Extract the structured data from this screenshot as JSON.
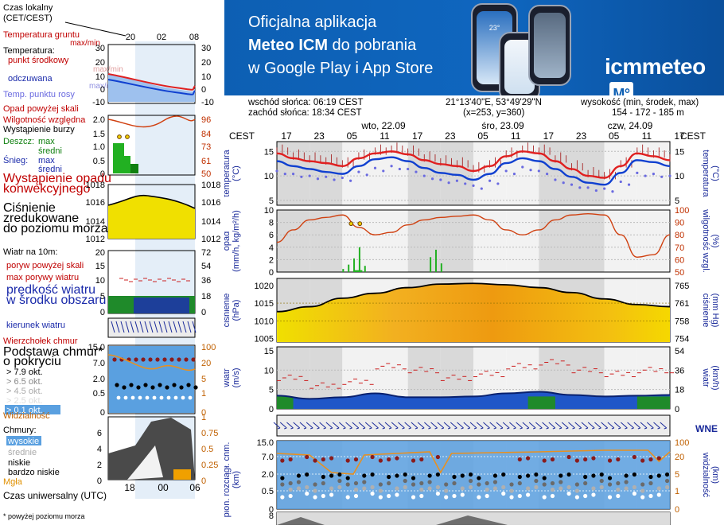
{
  "banner": {
    "line1": "Oficjalna aplikacja",
    "line2_bold": "Meteo ICM",
    "line2_rest": " do pobrania",
    "line3": "w Google Play i App Store",
    "logo_text": "icmmeteo",
    "logo_badge": "M°",
    "phone_temp": "23°"
  },
  "header": {
    "sunrise": "wschód słońca: 06:19 CEST",
    "sunset": "zachód słońca: 18:34 CEST",
    "coords": "21°13'40\"E, 53°49'29\"N",
    "grid": "(x=253,  y=360)",
    "height_label": "wysokość (min, środek, max)",
    "height_vals": "154 - 172 - 185 m"
  },
  "timeline": {
    "tz_left": "CEST",
    "tz_right": "CEST",
    "day_labels": [
      "wto, 22.09",
      "śro, 23.09",
      "czw, 24.09"
    ],
    "hour_ticks": [
      "17",
      "23",
      "05",
      "11",
      "17",
      "23",
      "05",
      "11",
      "17",
      "23",
      "05",
      "11",
      "17"
    ]
  },
  "legend": {
    "time_local": "Czas lokalny\n(CET/CEST)",
    "time_hours": [
      "20",
      "02",
      "08"
    ],
    "ground_temp": "Temperatura gruntu",
    "ground_temp_maxmin": "max/min",
    "temperature": "Temperatura:",
    "mid_point": "punkt środkowy",
    "mid_maxmin": "max/min",
    "feels": "odczuwana",
    "feels_maxmin": "max/min",
    "dew": "Temp. punktu rosy",
    "temp_ticks": [
      "30",
      "20",
      "10",
      "0",
      "-10"
    ],
    "precip_above": "Opad powyżej skali",
    "humidity": "Wilgotność względna",
    "storm": "Wystąpienie burzy",
    "rain": "Deszcz:",
    "rain_max": "max",
    "rain_mean": "średni",
    "snow": "Śnieg:",
    "snow_max": "max",
    "snow_mean": "średni",
    "precip_occ": "Wystąpienie opadu\nkonwekcyjnego",
    "precip_left_ticks": [
      "2.0",
      "1.5",
      "1.0",
      "0.5",
      "0"
    ],
    "precip_right_ticks": [
      "96",
      "84",
      "73",
      "61",
      "50"
    ],
    "pressure": "Ciśnienie\nzredukowane\ndo poziomu morza",
    "pressure_ticks": [
      "1018",
      "1016",
      "1014",
      "1012"
    ],
    "wind10": "Wiatr na 10m:",
    "gust_above": "poryw powyżej skali",
    "gust_max": "max porywy wiatru",
    "wind_mean": "prędkość wiatru\nw środku obszaru",
    "wind_left_ticks": [
      "20",
      "15",
      "10",
      "5",
      "0"
    ],
    "wind_right_ticks": [
      "72",
      "54",
      "36",
      "18",
      "0"
    ],
    "wind_dir": "kierunek wiatru",
    "cloud_top": "Wierzchołek chmur",
    "cloud_base": "Podstawa chmur*\no pokryciu",
    "okt": [
      "> 7.9 okt.",
      "> 6.5 okt.",
      "> 4.5 okt.",
      "> 2.5 okt.",
      "> 0.1 okt."
    ],
    "cloudbase_left_ticks": [
      "15.0",
      "7.0",
      "2.0",
      "0.5",
      "0"
    ],
    "cloudbase_right_ticks": [
      "100",
      "20",
      "5",
      "1",
      "0"
    ],
    "visibility": "Widzialność",
    "clouds": "Chmury:",
    "high": "wysokie",
    "mid": "średnie",
    "low": "niskie",
    "very_low": "bardzo niskie",
    "fog": "Mgła",
    "clouds_left_ticks": [
      "6",
      "4",
      "2",
      "0"
    ],
    "clouds_right_ticks": [
      "1",
      "0.75",
      "0.5",
      "0.25",
      "0"
    ],
    "utc": "Czas uniwersalny (UTC)",
    "utc_hours": [
      "18",
      "00",
      "06"
    ],
    "footnote": "* powyżej poziomu morza"
  },
  "panels": {
    "temp": {
      "left_label": "temperatura\n(°C)",
      "right_label": "(°C)\ntemperatura",
      "left_ticks": [
        "15",
        "10",
        "5"
      ],
      "right_ticks": [
        "15",
        "10",
        "5"
      ]
    },
    "precip": {
      "left_label": "opad\n(mm/h, kg/m²/h)",
      "right_label": "(%)\nwilgotność wzgl.",
      "left_ticks": [
        "10",
        "8",
        "6",
        "4",
        "2",
        "0"
      ],
      "right_ticks": [
        "100",
        "90",
        "80",
        "70",
        "60",
        "50"
      ]
    },
    "pressure": {
      "left_label": "ciśnienie\n(hPa)",
      "right_label": "(mm Hg)\nciśnienie",
      "left_ticks": [
        "1020",
        "1015",
        "1010",
        "1005"
      ],
      "right_ticks": [
        "765",
        "761",
        "758",
        "754"
      ]
    },
    "wind": {
      "left_label": "wiatr\n(m/s)",
      "right_label": "(km/h)\nwiatr",
      "left_ticks": [
        "15",
        "10",
        "5",
        "0"
      ],
      "right_ticks": [
        "54",
        "36",
        "18",
        "0"
      ]
    },
    "cloudbase": {
      "left_label": "pion. rozciągł. chm.\n(km)",
      "right_label": "(km)\nwidzialność",
      "left_ticks": [
        "15.0",
        "7.0",
        "2.0",
        "0.5",
        "0"
      ],
      "right_ticks": [
        "100",
        "20",
        "5",
        "1",
        "0"
      ]
    },
    "clouds": {
      "left_ticks": [
        "8"
      ]
    }
  },
  "chart_data": [
    {
      "type": "line",
      "title": "temperatura",
      "ylabel": "(°C)",
      "ylim": [
        4,
        17
      ],
      "x_hours_from_start": [
        0,
        3,
        6,
        9,
        12,
        15,
        18,
        21,
        24,
        27,
        30,
        33,
        36,
        39,
        42,
        45,
        48,
        51,
        54,
        57,
        60,
        63,
        66,
        69,
        72
      ],
      "series": [
        {
          "name": "temperatura max",
          "color": "#e02020",
          "values": [
            14.6,
            13.6,
            13.0,
            12.6,
            12.0,
            13.6,
            14.6,
            15.0,
            14.4,
            13.2,
            12.4,
            12.0,
            11.0,
            12.0,
            14.0,
            15.0,
            14.6,
            13.0,
            11.4,
            10.0,
            9.6,
            12.0,
            14.6,
            14.0,
            13.2
          ]
        },
        {
          "name": "temperatura",
          "color": "#1040d0",
          "values": [
            13.0,
            12.0,
            11.4,
            10.8,
            10.4,
            12.0,
            13.4,
            13.8,
            13.0,
            11.6,
            10.6,
            10.2,
            9.2,
            10.4,
            12.6,
            13.6,
            13.0,
            11.4,
            9.8,
            8.6,
            8.2,
            10.6,
            13.2,
            12.8,
            12.0
          ]
        },
        {
          "name": "punkt rosy",
          "color": "#6a6ae0",
          "values": [
            11.0,
            10.4,
            10.0,
            9.8,
            9.6,
            10.8,
            11.6,
            12.0,
            11.4,
            10.0,
            9.2,
            9.0,
            8.0,
            9.0,
            11.0,
            11.8,
            11.0,
            9.2,
            8.2,
            7.6,
            7.4,
            8.8,
            10.6,
            10.4,
            10.0
          ]
        }
      ]
    },
    {
      "type": "line",
      "title": "wilgotność wzgl.",
      "ylabel": "(%)",
      "ylim": [
        50,
        100
      ],
      "x_hours_from_start": [
        0,
        3,
        6,
        9,
        12,
        15,
        18,
        21,
        24,
        27,
        30,
        33,
        36,
        39,
        42,
        45,
        48,
        51,
        54,
        57,
        60,
        63,
        66,
        69,
        72
      ],
      "series": [
        {
          "name": "wilgotność",
          "color": "#d04010",
          "values": [
            74,
            84,
            92,
            94,
            96,
            86,
            80,
            82,
            88,
            92,
            94,
            95,
            96,
            92,
            84,
            80,
            84,
            92,
            96,
            97,
            96,
            80,
            62,
            64,
            80
          ]
        }
      ]
    },
    {
      "type": "area",
      "title": "ciśnienie",
      "ylabel": "(hPa)",
      "ylim": [
        1004,
        1022
      ],
      "x_hours_from_start": [
        0,
        6,
        12,
        18,
        24,
        30,
        36,
        42,
        48,
        54,
        60,
        66,
        72
      ],
      "series": [
        {
          "name": "ciśnienie",
          "color": "#000000",
          "values": [
            1012.6,
            1014.0,
            1016.4,
            1017.8,
            1019.4,
            1020.4,
            1020.6,
            1020.2,
            1019.4,
            1018.0,
            1016.2,
            1014.6,
            1014.0
          ]
        }
      ]
    },
    {
      "type": "line",
      "title": "wiatr",
      "ylabel": "(m/s)",
      "ylim": [
        0,
        16
      ],
      "x_hours_from_start": [
        0,
        6,
        12,
        18,
        24,
        30,
        36,
        42,
        48,
        54,
        60,
        66,
        72
      ],
      "series": [
        {
          "name": "prędkość wiatru",
          "color": "#0a3aa0",
          "values": [
            3.4,
            2.6,
            3.0,
            4.0,
            3.0,
            3.0,
            3.2,
            4.0,
            4.4,
            3.6,
            3.2,
            3.4,
            3.6
          ]
        },
        {
          "name": "max porywy",
          "color": "#cc2020",
          "values": [
            8,
            6,
            7,
            11,
            10,
            8,
            9,
            11,
            12,
            10,
            9,
            10,
            10
          ]
        }
      ]
    }
  ],
  "colors": {
    "temp_max": "#e02020",
    "temp_mean": "#1040d0",
    "dew": "#6a6ae0",
    "humidity": "#d04010",
    "rain": "#22b022",
    "pressure_fill": "#f0d400",
    "wind_fill": "#2050c0",
    "banner": "#0d5fb3"
  }
}
